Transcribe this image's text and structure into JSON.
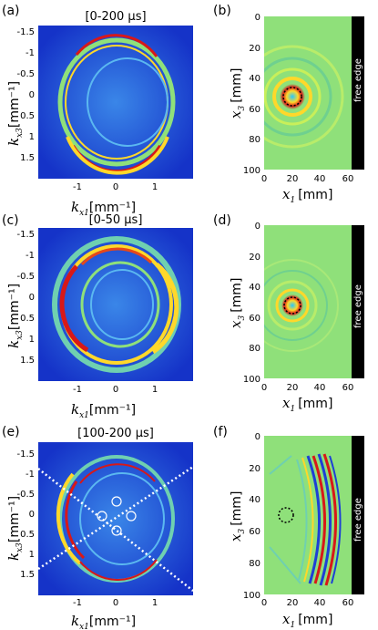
{
  "panels": [
    {
      "id": "a",
      "label": "(a)",
      "title": "[0-200 μs]",
      "xlabel_main": "k",
      "xlabel_sub": "x1",
      "xlabel_unit": "[mm⁻¹]",
      "ylabel_main": "k",
      "ylabel_sub": "x3",
      "ylabel_unit": "[mm⁻¹]",
      "xticks": [
        "-1",
        "0",
        "1"
      ],
      "yticks": [
        "-1.5",
        "-1",
        "-0.5",
        "0",
        "0.5",
        "1",
        "1.5"
      ]
    },
    {
      "id": "b",
      "label": "(b)",
      "title": "",
      "xlabel_main": "x",
      "xlabel_sub": "1",
      "xlabel_unit": "[mm]",
      "ylabel_main": "x",
      "ylabel_sub": "3",
      "ylabel_unit": "[mm]",
      "xticks": [
        "0",
        "20",
        "40",
        "60"
      ],
      "yticks": [
        "0",
        "20",
        "40",
        "60",
        "80",
        "100"
      ],
      "edge_label": "free edge"
    },
    {
      "id": "c",
      "label": "(c)",
      "title": "[0-50 μs]",
      "xlabel_main": "k",
      "xlabel_sub": "x1",
      "xlabel_unit": "[mm⁻¹]",
      "ylabel_main": "k",
      "ylabel_sub": "x3",
      "ylabel_unit": "[mm⁻¹]",
      "xticks": [
        "-1",
        "0",
        "1"
      ],
      "yticks": [
        "-1.5",
        "-1",
        "-0.5",
        "0",
        "0.5",
        "1",
        "1.5"
      ]
    },
    {
      "id": "d",
      "label": "(d)",
      "title": "",
      "xlabel_main": "x",
      "xlabel_sub": "1",
      "xlabel_unit": "[mm]",
      "ylabel_main": "x",
      "ylabel_sub": "3",
      "ylabel_unit": "[mm]",
      "xticks": [
        "0",
        "20",
        "40",
        "60"
      ],
      "yticks": [
        "0",
        "20",
        "40",
        "60",
        "80",
        "100"
      ],
      "edge_label": "free edge"
    },
    {
      "id": "e",
      "label": "(e)",
      "title": "[100-200 μs]",
      "xlabel_main": "k",
      "xlabel_sub": "x1",
      "xlabel_unit": "[mm⁻¹]",
      "ylabel_main": "k",
      "ylabel_sub": "x3",
      "ylabel_unit": "[mm⁻¹]",
      "xticks": [
        "-1",
        "0",
        "1"
      ],
      "yticks": [
        "-1.5",
        "-1",
        "-0.5",
        "0",
        "0.5",
        "1",
        "1.5"
      ]
    },
    {
      "id": "f",
      "label": "(f)",
      "title": "",
      "xlabel_main": "x",
      "xlabel_sub": "1",
      "xlabel_unit": "[mm]",
      "ylabel_main": "x",
      "ylabel_sub": "3",
      "ylabel_unit": "[mm]",
      "xticks": [
        "0",
        "20",
        "40",
        "60"
      ],
      "yticks": [
        "0",
        "20",
        "40",
        "60",
        "80",
        "100"
      ],
      "edge_label": "free edge"
    }
  ],
  "colors": {
    "background_low": "#1d3fd6",
    "field_neutral": "#8fe07a",
    "hot": "#d81818",
    "edge_strip": "#000000"
  }
}
